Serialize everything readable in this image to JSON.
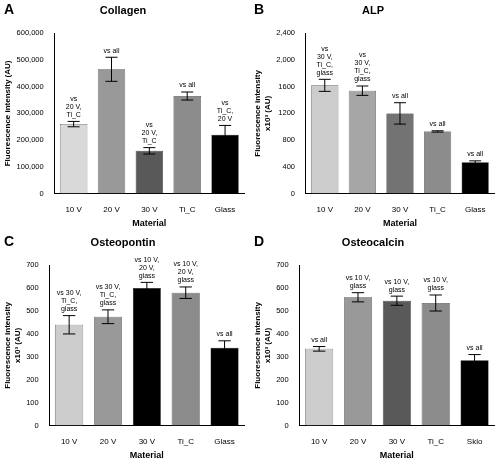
{
  "chart_data": [
    {
      "type": "bar",
      "panel_label": "A",
      "title": "Collagen",
      "ylabel": "Fluorescence intensity (AU)",
      "xlabel": "Material",
      "categories": [
        "10 V",
        "20 V",
        "30 V",
        "Ti_C",
        "Glass"
      ],
      "values": [
        260000,
        465000,
        160000,
        365000,
        220000
      ],
      "errors": [
        10000,
        45000,
        12000,
        15000,
        35000
      ],
      "annotations": [
        [
          "vs",
          "20 V,",
          "Ti_C"
        ],
        [
          "vs all"
        ],
        [
          "vs",
          "20 V,",
          "Ti_C"
        ],
        [
          "vs all"
        ],
        [
          "vs",
          "Ti_C,",
          "20 V"
        ]
      ],
      "colors": [
        "#d9d9d9",
        "#999999",
        "#595959",
        "#8c8c8c",
        "#000000"
      ],
      "ylim": [
        0,
        600000
      ],
      "yticks": [
        0,
        {
          "value": 100000,
          "label": "100,000"
        },
        {
          "value": 200000,
          "label": "200,000"
        },
        {
          "value": 300000,
          "label": "300,000"
        },
        {
          "value": 400000,
          "label": "400,000"
        },
        {
          "value": 500000,
          "label": "500,000"
        },
        {
          "value": 600000,
          "label": "600,000"
        }
      ],
      "grid": false
    },
    {
      "type": "bar",
      "panel_label": "B",
      "title": "ALP",
      "ylabel": [
        "Fluorescence intensity",
        "x10³ (AU)"
      ],
      "xlabel": "Material",
      "categories": [
        "10 V",
        "20 V",
        "30 V",
        "Ti_C",
        "Glass"
      ],
      "values": [
        1620,
        1540,
        1200,
        930,
        470
      ],
      "errors": [
        90,
        70,
        160,
        10,
        20
      ],
      "annotations": [
        [
          "vs",
          "30 V,",
          "Ti_C,",
          "glass"
        ],
        [
          "vs",
          "30 V,",
          "Ti_C,",
          "glass"
        ],
        [
          "vs all"
        ],
        [
          "vs all"
        ],
        [
          "vs all"
        ]
      ],
      "colors": [
        "#cccccc",
        "#a6a6a6",
        "#737373",
        "#8c8c8c",
        "#000000"
      ],
      "ylim": [
        0,
        2400
      ],
      "yticks": [
        0,
        400,
        800,
        1200,
        1600,
        {
          "value": 2000,
          "label": "2,000"
        },
        {
          "value": 2400,
          "label": "2,400"
        }
      ],
      "grid": false
    },
    {
      "type": "bar",
      "panel_label": "C",
      "title": "Osteopontin",
      "ylabel": [
        "Fluorescence intensity",
        "x10³ (AU)"
      ],
      "xlabel": "Material",
      "categories": [
        "10 V",
        "20 V",
        "30 V",
        "Ti_C",
        "Glass"
      ],
      "values": [
        440,
        475,
        600,
        580,
        340
      ],
      "errors": [
        40,
        30,
        25,
        25,
        30
      ],
      "annotations": [
        [
          "vs 30 V,",
          "Ti_C,",
          "glass"
        ],
        [
          "vs 30 V,",
          "Ti_C,",
          "glass"
        ],
        [
          "vs 10 V,",
          "20 V,",
          "glass"
        ],
        [
          "vs 10 V,",
          "20 V,",
          "glass"
        ],
        [
          "vs all"
        ]
      ],
      "colors": [
        "#cccccc",
        "#999999",
        "#000000",
        "#8c8c8c",
        "#000000"
      ],
      "ylim": [
        0,
        700
      ],
      "yticks": [
        0,
        100,
        200,
        300,
        400,
        500,
        600,
        700
      ],
      "grid": false
    },
    {
      "type": "bar",
      "panel_label": "D",
      "title": "Osteocalcin",
      "ylabel": [
        "Fluorescence intensity",
        "x10³ (AU)"
      ],
      "xlabel": "Material",
      "categories": [
        "10 V",
        "20 V",
        "30 V",
        "Ti_C",
        "Sklo"
      ],
      "values": [
        335,
        560,
        545,
        535,
        285
      ],
      "errors": [
        10,
        20,
        20,
        35,
        25
      ],
      "annotations": [
        [
          "vs all"
        ],
        [
          "vs 10 V,",
          "glass"
        ],
        [
          "vs 10 V,",
          "glass"
        ],
        [
          "vs 10 V,",
          "glass"
        ],
        [
          "vs all"
        ]
      ],
      "colors": [
        "#cccccc",
        "#999999",
        "#595959",
        "#8c8c8c",
        "#000000"
      ],
      "ylim": [
        0,
        700
      ],
      "yticks": [
        0,
        100,
        200,
        300,
        400,
        500,
        600,
        700
      ],
      "grid": false
    }
  ]
}
